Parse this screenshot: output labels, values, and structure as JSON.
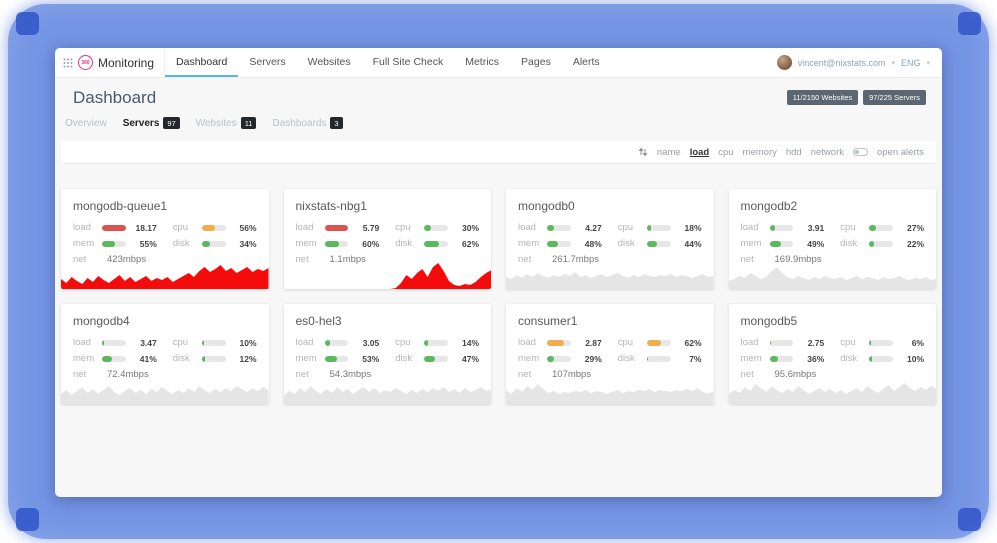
{
  "window": {
    "brand": {
      "logo_text": "360",
      "name": "Monitoring"
    },
    "nav": {
      "items": [
        {
          "label": "Dashboard",
          "active": true
        },
        {
          "label": "Servers"
        },
        {
          "label": "Websites"
        },
        {
          "label": "Full Site Check"
        },
        {
          "label": "Metrics"
        },
        {
          "label": "Pages"
        },
        {
          "label": "Alerts"
        }
      ]
    },
    "user": {
      "email": "vincent@nixstats.com",
      "language": "ENG"
    }
  },
  "page": {
    "title": "Dashboard",
    "summary_badges": [
      {
        "label": "11/2150 Websites"
      },
      {
        "label": "97/225 Servers"
      }
    ],
    "tabs": [
      {
        "label": "Overview"
      },
      {
        "label": "Servers",
        "count": "97",
        "active": true
      },
      {
        "label": "Websites",
        "count": "11"
      },
      {
        "label": "Dashboards",
        "count": "3"
      }
    ],
    "sortbar": {
      "items": [
        {
          "label": "name"
        },
        {
          "label": "load",
          "active": true
        },
        {
          "label": "cpu"
        },
        {
          "label": "memory"
        },
        {
          "label": "hdd"
        },
        {
          "label": "network"
        }
      ],
      "open_alerts_label": "open alerts"
    }
  },
  "metric_labels": {
    "load": "load",
    "cpu": "cpu",
    "mem": "mem",
    "disk": "disk",
    "net": "net"
  },
  "colors": {
    "red": "#d9534f",
    "orange": "#f0ad4e",
    "green": "#5cb85c",
    "spark_red": "#f40b0b",
    "spark_gray": "#e5e5e6"
  },
  "cards": [
    {
      "name": "mongodb-queue1",
      "metrics": {
        "load": {
          "value": "18.17",
          "pct": 100,
          "color": "red"
        },
        "cpu": {
          "value": "56%",
          "pct": 56,
          "color": "orange"
        },
        "mem": {
          "value": "55%",
          "pct": 55,
          "color": "green"
        },
        "disk": {
          "value": "34%",
          "pct": 34,
          "color": "green"
        }
      },
      "net": "423mbps",
      "spark": {
        "color": "spark_red",
        "points": [
          10,
          6,
          12,
          8,
          5,
          11,
          7,
          13,
          9,
          6,
          10,
          14,
          8,
          12,
          7,
          10,
          13,
          8,
          11,
          9,
          12,
          7,
          10,
          13,
          16,
          12,
          18,
          22,
          17,
          20,
          24,
          18,
          21,
          16,
          19,
          22,
          17,
          20,
          18,
          21
        ]
      }
    },
    {
      "name": "nixstats-nbg1",
      "metrics": {
        "load": {
          "value": "5.79",
          "pct": 100,
          "color": "red"
        },
        "cpu": {
          "value": "30%",
          "pct": 30,
          "color": "green"
        },
        "mem": {
          "value": "60%",
          "pct": 60,
          "color": "green"
        },
        "disk": {
          "value": "62%",
          "pct": 62,
          "color": "green"
        }
      },
      "net": "1.1mbps",
      "spark": {
        "color": "spark_red",
        "points": [
          0,
          0,
          0,
          0,
          0,
          0,
          0,
          0,
          0,
          0,
          0,
          0,
          0,
          0,
          0,
          0,
          0,
          0,
          0,
          0,
          0,
          1,
          6,
          14,
          10,
          16,
          20,
          12,
          22,
          26,
          18,
          8,
          4,
          3,
          5,
          4,
          7,
          12,
          16,
          19
        ]
      }
    },
    {
      "name": "mongodb0",
      "metrics": {
        "load": {
          "value": "4.27",
          "pct": 28,
          "color": "green"
        },
        "cpu": {
          "value": "18%",
          "pct": 18,
          "color": "green"
        },
        "mem": {
          "value": "48%",
          "pct": 48,
          "color": "green"
        },
        "disk": {
          "value": "44%",
          "pct": 44,
          "color": "green"
        }
      },
      "net": "261.7mbps",
      "spark": {
        "color": "spark_gray",
        "points": [
          12,
          10,
          14,
          11,
          15,
          12,
          16,
          13,
          11,
          14,
          12,
          15,
          13,
          17,
          12,
          14,
          11,
          13,
          15,
          12,
          14,
          16,
          13,
          11,
          14,
          12,
          15,
          13,
          12,
          14,
          13,
          15,
          12,
          14,
          13,
          11,
          13,
          15,
          12,
          13
        ]
      }
    },
    {
      "name": "mongodb2",
      "metrics": {
        "load": {
          "value": "3.91",
          "pct": 25,
          "color": "green"
        },
        "cpu": {
          "value": "27%",
          "pct": 27,
          "color": "green"
        },
        "mem": {
          "value": "49%",
          "pct": 49,
          "color": "green"
        },
        "disk": {
          "value": "22%",
          "pct": 22,
          "color": "green"
        }
      },
      "net": "169.9mbps",
      "spark": {
        "color": "spark_gray",
        "points": [
          8,
          10,
          13,
          11,
          16,
          13,
          10,
          12,
          18,
          22,
          16,
          12,
          10,
          13,
          11,
          9,
          12,
          10,
          13,
          11,
          10,
          12,
          9,
          11,
          13,
          10,
          12,
          11,
          9,
          12,
          10,
          11,
          13,
          10,
          9,
          11,
          10,
          12,
          9,
          10
        ]
      }
    },
    {
      "name": "mongodb4",
      "metrics": {
        "load": {
          "value": "3.47",
          "pct": 9,
          "color": "green"
        },
        "cpu": {
          "value": "10%",
          "pct": 10,
          "color": "green"
        },
        "mem": {
          "value": "41%",
          "pct": 41,
          "color": "green"
        },
        "disk": {
          "value": "12%",
          "pct": 12,
          "color": "green"
        }
      },
      "net": "72.4mbps",
      "spark": {
        "color": "spark_gray",
        "points": [
          10,
          14,
          9,
          13,
          17,
          11,
          15,
          10,
          14,
          18,
          12,
          9,
          13,
          16,
          11,
          14,
          10,
          15,
          12,
          17,
          13,
          10,
          14,
          11,
          16,
          12,
          18,
          14,
          11,
          15,
          12,
          16,
          13,
          18,
          15,
          12,
          16,
          13,
          17,
          14
        ]
      }
    },
    {
      "name": "es0-hel3",
      "metrics": {
        "load": {
          "value": "3.05",
          "pct": 24,
          "color": "green"
        },
        "cpu": {
          "value": "14%",
          "pct": 14,
          "color": "green"
        },
        "mem": {
          "value": "53%",
          "pct": 53,
          "color": "green"
        },
        "disk": {
          "value": "47%",
          "pct": 47,
          "color": "green"
        }
      },
      "net": "54.3mbps",
      "spark": {
        "color": "spark_gray",
        "points": [
          9,
          13,
          10,
          16,
          12,
          18,
          13,
          10,
          15,
          11,
          17,
          12,
          15,
          10,
          14,
          17,
          12,
          16,
          11,
          14,
          12,
          16,
          13,
          10,
          14,
          11,
          15,
          12,
          16,
          13,
          17,
          12,
          15,
          11,
          16,
          12,
          14,
          17,
          13,
          15
        ]
      }
    },
    {
      "name": "consumer1",
      "metrics": {
        "load": {
          "value": "2.87",
          "pct": 70,
          "color": "orange"
        },
        "cpu": {
          "value": "62%",
          "pct": 62,
          "color": "orange"
        },
        "mem": {
          "value": "29%",
          "pct": 29,
          "color": "green"
        },
        "disk": {
          "value": "7%",
          "pct": 7,
          "color": "green"
        }
      },
      "net": "107mbps",
      "spark": {
        "color": "spark_gray",
        "points": [
          14,
          10,
          16,
          12,
          18,
          14,
          20,
          15,
          11,
          13,
          10,
          12,
          11,
          13,
          12,
          14,
          11,
          13,
          12,
          10,
          12,
          14,
          11,
          13,
          12,
          14,
          13,
          15,
          12,
          14,
          13,
          12,
          14,
          13,
          15,
          13,
          16,
          12,
          10,
          13
        ]
      }
    },
    {
      "name": "mongodb5",
      "metrics": {
        "load": {
          "value": "2.75",
          "pct": 7,
          "color": "green"
        },
        "cpu": {
          "value": "6%",
          "pct": 6,
          "color": "green"
        },
        "mem": {
          "value": "36%",
          "pct": 36,
          "color": "green"
        },
        "disk": {
          "value": "10%",
          "pct": 10,
          "color": "green"
        }
      },
      "net": "95.6mbps",
      "spark": {
        "color": "spark_gray",
        "points": [
          10,
          14,
          11,
          17,
          13,
          20,
          16,
          12,
          18,
          14,
          11,
          15,
          12,
          18,
          14,
          10,
          13,
          16,
          12,
          15,
          11,
          14,
          10,
          13,
          16,
          12,
          18,
          14,
          11,
          15,
          19,
          13,
          17,
          21,
          16,
          13,
          17,
          14,
          18,
          15
        ]
      }
    }
  ]
}
